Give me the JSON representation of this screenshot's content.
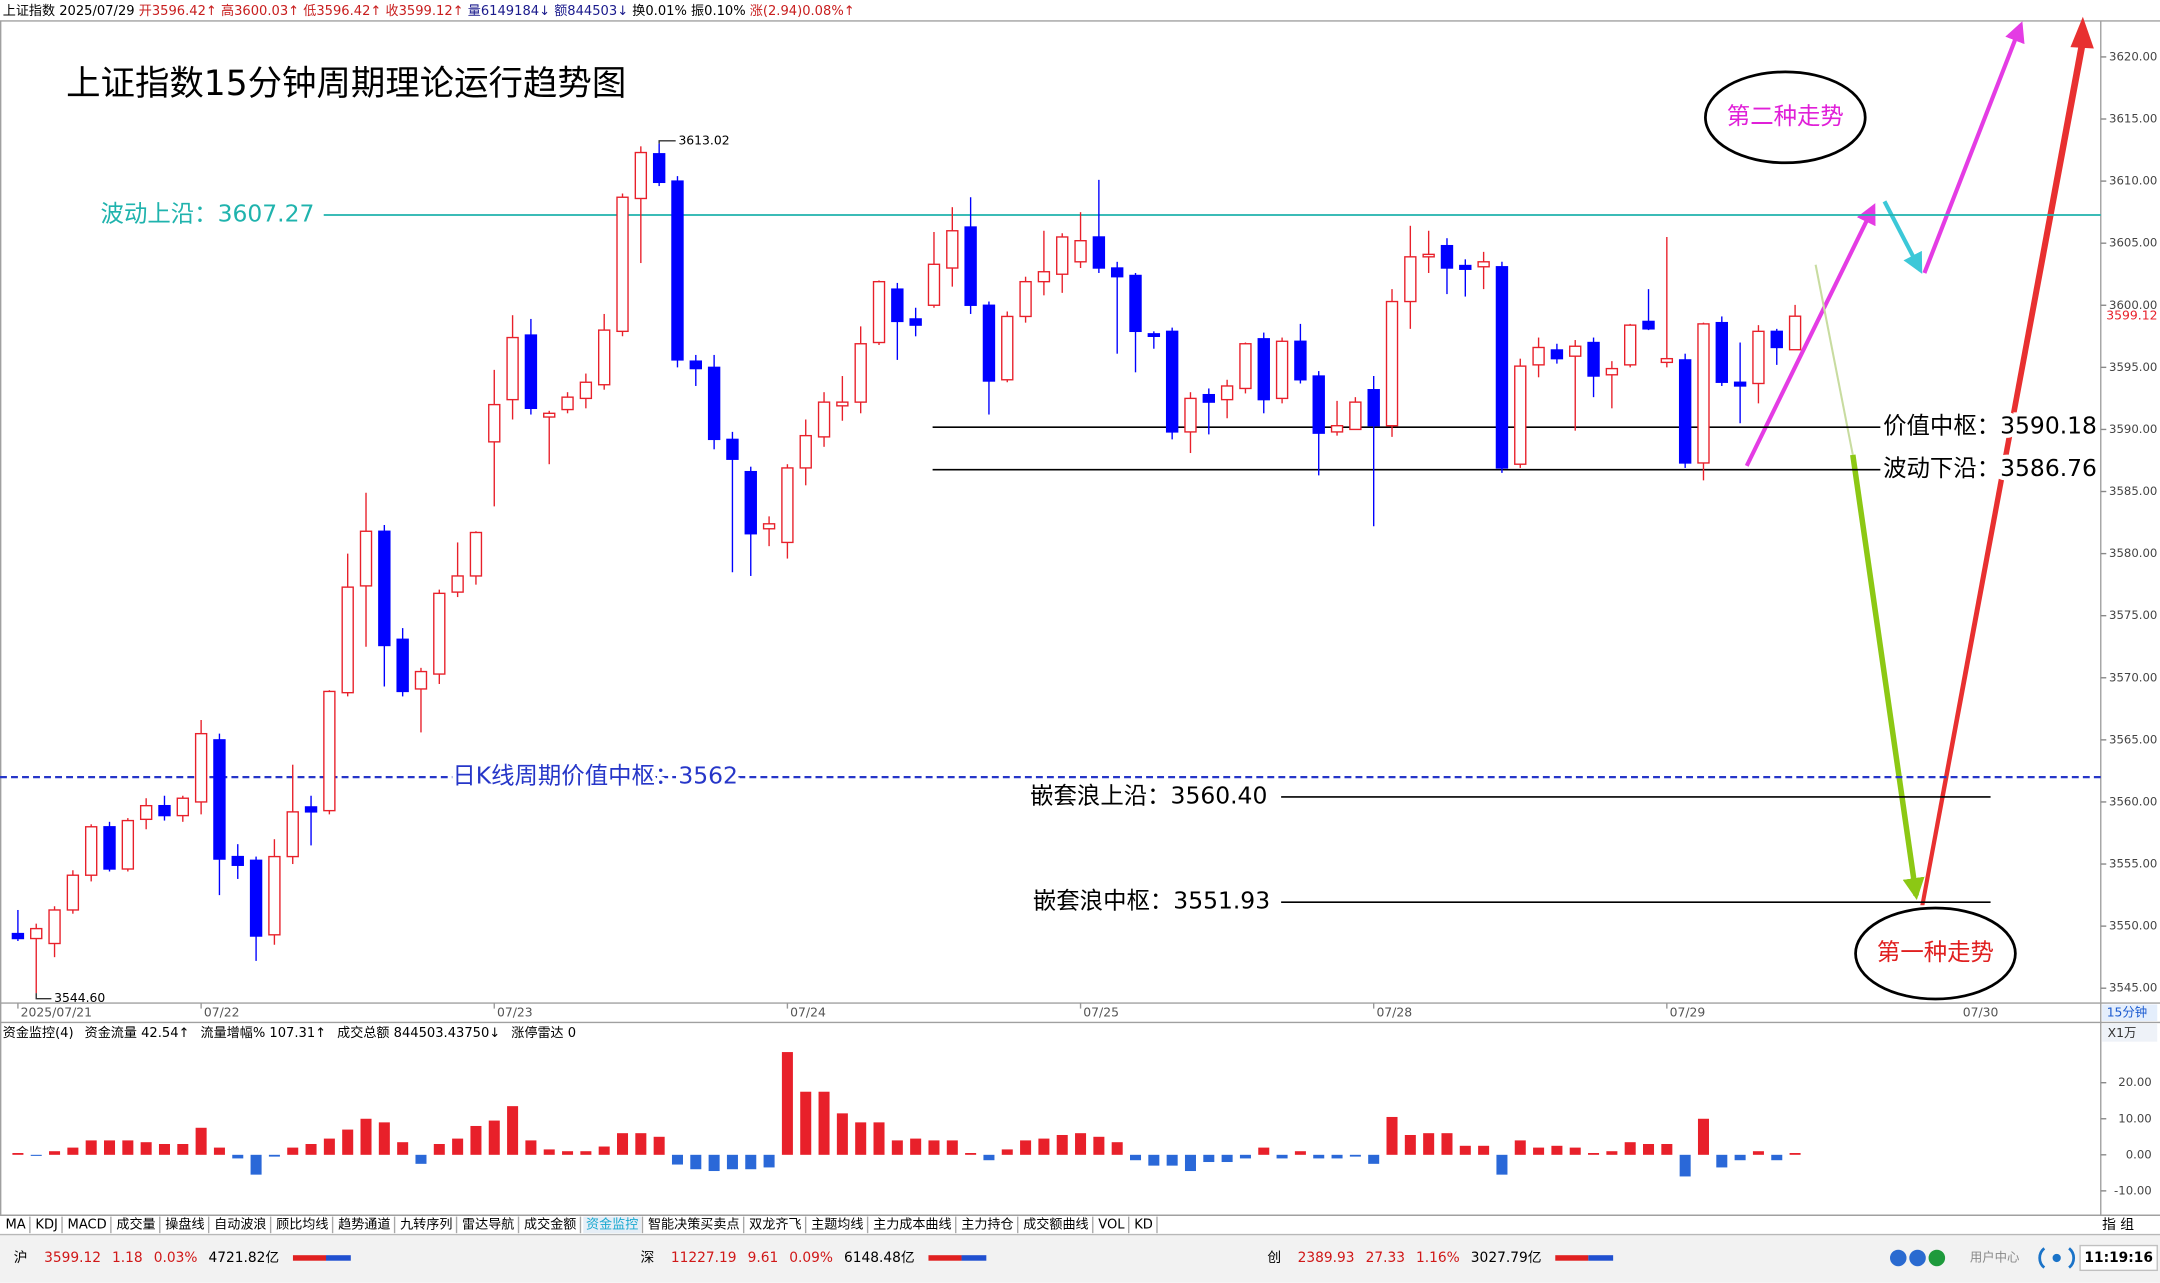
{
  "header": [
    {
      "text": "上证指数 2025/07/29",
      "color": "#000000"
    },
    {
      "text": "开3596.42↑",
      "color": "#c81e1e"
    },
    {
      "text": "高3600.03↑",
      "color": "#c81e1e"
    },
    {
      "text": "低3596.42↑",
      "color": "#c81e1e"
    },
    {
      "text": "收3599.12↑",
      "color": "#c81e1e"
    },
    {
      "text": "量6149184↓",
      "color": "#1a1a8c"
    },
    {
      "text": "额844503↓",
      "color": "#1a1a8c"
    },
    {
      "text": "换0.01%",
      "color": "#000000"
    },
    {
      "text": "振0.10%",
      "color": "#000000"
    },
    {
      "text": "涨(2.94)0.08%↑",
      "color": "#c81e1e"
    }
  ],
  "chart_data": [
    {
      "type": "candlestick",
      "title": "上证指数15分钟周期理论运行趋势图",
      "period": "15分钟",
      "up_color": "#e8202a",
      "down_color": "#0000ff",
      "categories": [
        "2025/07/21",
        null,
        null,
        null,
        null,
        null,
        null,
        null,
        null,
        null,
        "07/22",
        null,
        null,
        null,
        null,
        null,
        null,
        null,
        null,
        null,
        null,
        null,
        null,
        null,
        null,
        null,
        "07/23",
        null,
        null,
        null,
        null,
        null,
        null,
        null,
        null,
        null,
        null,
        null,
        null,
        null,
        null,
        null,
        "07/24",
        null,
        null,
        null,
        null,
        null,
        null,
        null,
        null,
        null,
        null,
        null,
        null,
        null,
        null,
        null,
        "07/25",
        null,
        null,
        null,
        null,
        null,
        null,
        null,
        null,
        null,
        null,
        null,
        null,
        null,
        null,
        null,
        "07/28",
        null,
        null,
        null,
        null,
        null,
        null,
        null,
        null,
        null,
        null,
        null,
        null,
        null,
        null,
        null,
        "07/29",
        null,
        null,
        null,
        null,
        null,
        null,
        null
      ],
      "next_label": "07/30",
      "ohlc": [
        [
          3549.4,
          3551.3,
          3548.8,
          3549.0
        ],
        [
          3549.0,
          3550.2,
          3544.6,
          3549.8
        ],
        [
          3548.6,
          3551.6,
          3547.5,
          3551.3
        ],
        [
          3551.3,
          3554.5,
          3551.0,
          3554.1
        ],
        [
          3554.1,
          3558.2,
          3553.6,
          3558.0
        ],
        [
          3558.0,
          3558.4,
          3554.4,
          3554.6
        ],
        [
          3554.6,
          3558.7,
          3554.4,
          3558.5
        ],
        [
          3558.6,
          3560.3,
          3557.8,
          3559.7
        ],
        [
          3559.7,
          3560.5,
          3558.5,
          3558.9
        ],
        [
          3558.9,
          3560.5,
          3558.4,
          3560.3
        ],
        [
          3560.0,
          3566.6,
          3559.0,
          3565.5
        ],
        [
          3565.0,
          3565.5,
          3552.5,
          3555.4
        ],
        [
          3555.6,
          3556.6,
          3553.8,
          3554.9
        ],
        [
          3555.3,
          3555.6,
          3547.2,
          3549.2
        ],
        [
          3549.3,
          3557.0,
          3548.5,
          3555.6
        ],
        [
          3555.6,
          3563.0,
          3555.0,
          3559.2
        ],
        [
          3559.6,
          3560.5,
          3556.5,
          3559.2
        ],
        [
          3559.3,
          3569.0,
          3559.0,
          3568.9
        ],
        [
          3568.8,
          3580.0,
          3568.5,
          3577.3
        ],
        [
          3577.4,
          3584.9,
          3572.5,
          3581.8
        ],
        [
          3581.8,
          3582.3,
          3569.3,
          3572.6
        ],
        [
          3573.1,
          3574.0,
          3568.5,
          3568.9
        ],
        [
          3569.1,
          3570.8,
          3565.6,
          3570.5
        ],
        [
          3570.3,
          3577.1,
          3569.5,
          3576.8
        ],
        [
          3576.9,
          3580.9,
          3576.5,
          3578.2
        ],
        [
          3578.2,
          3581.8,
          3577.5,
          3581.7
        ],
        [
          3589.0,
          3594.8,
          3583.8,
          3592.0
        ],
        [
          3592.4,
          3599.2,
          3590.8,
          3597.4
        ],
        [
          3597.6,
          3598.9,
          3591.2,
          3591.7
        ],
        [
          3591.0,
          3591.5,
          3587.2,
          3591.3
        ],
        [
          3591.6,
          3593.0,
          3591.3,
          3592.6
        ],
        [
          3592.5,
          3594.5,
          3591.7,
          3593.8
        ],
        [
          3593.6,
          3599.3,
          3593.2,
          3598.0
        ],
        [
          3597.9,
          3609.0,
          3597.5,
          3608.7
        ],
        [
          3608.6,
          3612.8,
          3603.4,
          3612.3
        ],
        [
          3612.2,
          3613.02,
          3609.6,
          3609.9
        ],
        [
          3610.0,
          3610.4,
          3595.0,
          3595.6
        ],
        [
          3595.5,
          3596.0,
          3593.5,
          3594.9
        ],
        [
          3595.0,
          3596.0,
          3588.4,
          3589.2
        ],
        [
          3589.2,
          3589.8,
          3578.5,
          3587.6
        ],
        [
          3586.6,
          3587.0,
          3578.2,
          3581.6
        ],
        [
          3582.0,
          3583.0,
          3580.6,
          3582.4
        ],
        [
          3580.9,
          3587.2,
          3579.6,
          3586.9
        ],
        [
          3586.9,
          3590.8,
          3585.5,
          3589.5
        ],
        [
          3589.4,
          3593.0,
          3588.6,
          3592.2
        ],
        [
          3591.9,
          3594.3,
          3590.7,
          3592.2
        ],
        [
          3592.2,
          3598.3,
          3591.3,
          3596.9
        ],
        [
          3597.0,
          3602.0,
          3596.8,
          3601.9
        ],
        [
          3601.3,
          3601.8,
          3595.6,
          3598.7
        ],
        [
          3598.9,
          3599.8,
          3597.5,
          3598.4
        ],
        [
          3600.0,
          3605.9,
          3599.8,
          3603.3
        ],
        [
          3603.0,
          3607.9,
          3601.5,
          3606.0
        ],
        [
          3606.3,
          3608.7,
          3599.3,
          3600.0
        ],
        [
          3600.0,
          3600.3,
          3591.2,
          3593.9
        ],
        [
          3594.0,
          3599.5,
          3593.8,
          3599.1
        ],
        [
          3599.1,
          3602.3,
          3598.6,
          3601.9
        ],
        [
          3601.9,
          3606.0,
          3600.8,
          3602.7
        ],
        [
          3602.5,
          3605.8,
          3601.0,
          3605.5
        ],
        [
          3603.5,
          3607.5,
          3603.0,
          3605.2
        ],
        [
          3605.5,
          3610.1,
          3602.6,
          3603.0
        ],
        [
          3603.0,
          3603.5,
          3596.1,
          3602.3
        ],
        [
          3602.4,
          3602.6,
          3594.6,
          3597.9
        ],
        [
          3597.7,
          3597.9,
          3596.5,
          3597.5
        ],
        [
          3597.9,
          3598.2,
          3589.2,
          3589.8
        ],
        [
          3589.8,
          3593.0,
          3588.1,
          3592.5
        ],
        [
          3592.8,
          3593.3,
          3589.6,
          3592.2
        ],
        [
          3592.4,
          3594.0,
          3590.9,
          3593.5
        ],
        [
          3593.3,
          3597.0,
          3592.9,
          3596.9
        ],
        [
          3597.3,
          3597.8,
          3591.3,
          3592.4
        ],
        [
          3592.5,
          3597.4,
          3592.1,
          3597.1
        ],
        [
          3597.1,
          3598.5,
          3593.7,
          3594.0
        ],
        [
          3594.3,
          3594.7,
          3586.3,
          3589.7
        ],
        [
          3589.8,
          3592.3,
          3589.5,
          3590.3
        ],
        [
          3590.0,
          3592.6,
          3590.0,
          3592.2
        ],
        [
          3593.2,
          3594.3,
          3582.2,
          3590.3
        ],
        [
          3590.3,
          3601.3,
          3589.4,
          3600.3
        ],
        [
          3600.3,
          3606.4,
          3598.1,
          3603.9
        ],
        [
          3603.9,
          3606.0,
          3602.6,
          3604.1
        ],
        [
          3604.8,
          3605.4,
          3600.9,
          3603.0
        ],
        [
          3603.2,
          3603.7,
          3600.7,
          3602.9
        ],
        [
          3603.1,
          3604.3,
          3601.3,
          3603.5
        ],
        [
          3603.1,
          3603.5,
          3586.5,
          3586.9
        ],
        [
          3587.2,
          3595.7,
          3586.9,
          3595.1
        ],
        [
          3595.2,
          3597.4,
          3594.2,
          3596.6
        ],
        [
          3596.4,
          3596.9,
          3595.3,
          3595.7
        ],
        [
          3595.9,
          3597.2,
          3589.9,
          3596.7
        ],
        [
          3597.0,
          3597.4,
          3592.6,
          3594.3
        ],
        [
          3594.4,
          3595.5,
          3591.7,
          3594.9
        ],
        [
          3595.2,
          3598.5,
          3595.0,
          3598.4
        ],
        [
          3598.7,
          3601.3,
          3598.0,
          3598.1
        ],
        [
          3595.4,
          3605.5,
          3595.0,
          3595.7
        ],
        [
          3595.6,
          3596.1,
          3586.9,
          3587.3
        ],
        [
          3587.3,
          3598.6,
          3585.9,
          3598.5
        ],
        [
          3598.6,
          3599.1,
          3593.5,
          3593.8
        ],
        [
          3593.8,
          3597.0,
          3590.5,
          3593.5
        ],
        [
          3593.7,
          3598.4,
          3592.1,
          3597.9
        ],
        [
          3597.9,
          3598.1,
          3595.2,
          3596.6
        ],
        [
          3596.42,
          3600.03,
          3596.42,
          3599.12
        ]
      ],
      "high_label": "3613.02",
      "low_label": "3544.60",
      "ylim": [
        3543.8,
        3622.9
      ],
      "yticks": [
        {
          "value": 3545,
          "label": "3545.00"
        },
        {
          "value": 3550,
          "label": "3550.00"
        },
        {
          "value": 3555,
          "label": "3555.00"
        },
        {
          "value": 3560,
          "label": "3560.00"
        },
        {
          "value": 3565,
          "label": "3565.00"
        },
        {
          "value": 3570,
          "label": "3570.00"
        },
        {
          "value": 3575,
          "label": "3575.00"
        },
        {
          "value": 3580,
          "label": "3580.00"
        },
        {
          "value": 3585,
          "label": "3585.00"
        },
        {
          "value": 3590,
          "label": "3590.00"
        },
        {
          "value": 3595,
          "label": "3595.00"
        },
        {
          "value": 3600,
          "label": "3600.00"
        },
        {
          "value": 3605,
          "label": "3605.00"
        },
        {
          "value": 3610,
          "label": "3610.00"
        },
        {
          "value": 3615,
          "label": "3615.00"
        },
        {
          "value": 3620,
          "label": "3620.00"
        }
      ],
      "levels": [
        {
          "label": "波动上沿：3607.27",
          "value": 3607.27,
          "color": "#1fb3ad",
          "dashed": false
        },
        {
          "label": "日K线周期价值中枢：3562",
          "value": 3562,
          "color": "#2636c8",
          "dashed": true
        },
        {
          "label": "价值中枢：3590.18",
          "value": 3590.18,
          "color": "#000000",
          "dashed": false
        },
        {
          "label": "波动下沿：3586.76",
          "value": 3586.76,
          "color": "#000000",
          "dashed": false
        },
        {
          "label": "嵌套浪上沿：3560.40",
          "value": 3560.4,
          "color": "#000000",
          "dashed": false
        },
        {
          "label": "嵌套浪中枢：3551.93",
          "value": 3551.93,
          "color": "#000000",
          "dashed": false
        }
      ],
      "annotations": [
        {
          "text": "第二种走势",
          "color": "#e020d8"
        },
        {
          "text": "第一种走势",
          "color": "#e02020"
        }
      ]
    },
    {
      "type": "bar",
      "title": "资金监控(4)",
      "unit": "X1万",
      "color": "#e8202a",
      "negative_color": "#2a68d8",
      "stats": [
        "资金流量 42.54↑",
        "流量增幅% 107.31↑",
        "成交总额 844503.43750↓",
        "涨停雷达 0"
      ],
      "values": [
        0.5,
        -0.3,
        1,
        2,
        4,
        4,
        4,
        3.5,
        3,
        3,
        7.5,
        2,
        -1,
        -5.5,
        -0.5,
        2,
        3,
        4.5,
        7,
        10,
        9,
        3.5,
        -2.5,
        3,
        4.5,
        8,
        9.5,
        13.5,
        4,
        1.5,
        1,
        1,
        2.3,
        6,
        6,
        5,
        -2.7,
        -4,
        -4.5,
        -4,
        -4,
        -3.5,
        28.5,
        17.5,
        17.5,
        11.5,
        9,
        9,
        4,
        4.5,
        4,
        4,
        0.5,
        -1.5,
        1.5,
        4,
        4.5,
        5.5,
        6,
        5,
        3.5,
        -1.5,
        -3,
        -3,
        -4.5,
        -2,
        -2,
        -1,
        2,
        -1,
        1,
        -1,
        -1,
        -0.5,
        -2.5,
        10.5,
        5.5,
        6,
        6,
        2.5,
        2.5,
        -5.5,
        4,
        2,
        2.5,
        2,
        0.5,
        1,
        3.5,
        3,
        3,
        -6,
        10,
        -3.5,
        -1.5,
        1,
        -1.5,
        0.5
      ],
      "ylim": [
        -16,
        31
      ],
      "yticks": [
        {
          "value": 20,
          "label": "20.00"
        },
        {
          "value": 10,
          "label": "10.00"
        },
        {
          "value": 0,
          "label": "0.00"
        },
        {
          "value": -10,
          "label": "-10.00"
        }
      ]
    }
  ],
  "tabs": {
    "items": [
      "MA",
      "KDJ",
      "MACD",
      "成交量",
      "操盘线",
      "自动波浪",
      "顾比均线",
      "趋势通道",
      "九转序列",
      "雷达导航",
      "成交金额",
      "资金监控",
      "智能决策买卖点",
      "双龙齐飞",
      "主题均线",
      "主力成本曲线",
      "主力持仓",
      "成交额曲线",
      "VOL",
      "KD"
    ],
    "active": 11,
    "right": "指 组"
  },
  "status": {
    "groups": [
      {
        "name": "沪",
        "items": [
          {
            "text": "3599.12",
            "color": "#d01818"
          },
          {
            "text": "1.18",
            "color": "#d01818"
          },
          {
            "text": "0.03%",
            "color": "#d01818"
          },
          {
            "text": "4721.82亿",
            "color": "#000000"
          }
        ]
      },
      {
        "name": "深",
        "items": [
          {
            "text": "11227.19",
            "color": "#d01818"
          },
          {
            "text": "9.61",
            "color": "#d01818"
          },
          {
            "text": "0.09%",
            "color": "#d01818"
          },
          {
            "text": "6148.48亿",
            "color": "#000000"
          }
        ]
      },
      {
        "name": "创",
        "items": [
          {
            "text": "2389.93",
            "color": "#d01818"
          },
          {
            "text": "27.33",
            "color": "#d01818"
          },
          {
            "text": "1.16%",
            "color": "#d01818"
          },
          {
            "text": "3027.79亿",
            "color": "#000000"
          }
        ]
      }
    ],
    "user": "用户中心",
    "time": "11:19:16"
  }
}
